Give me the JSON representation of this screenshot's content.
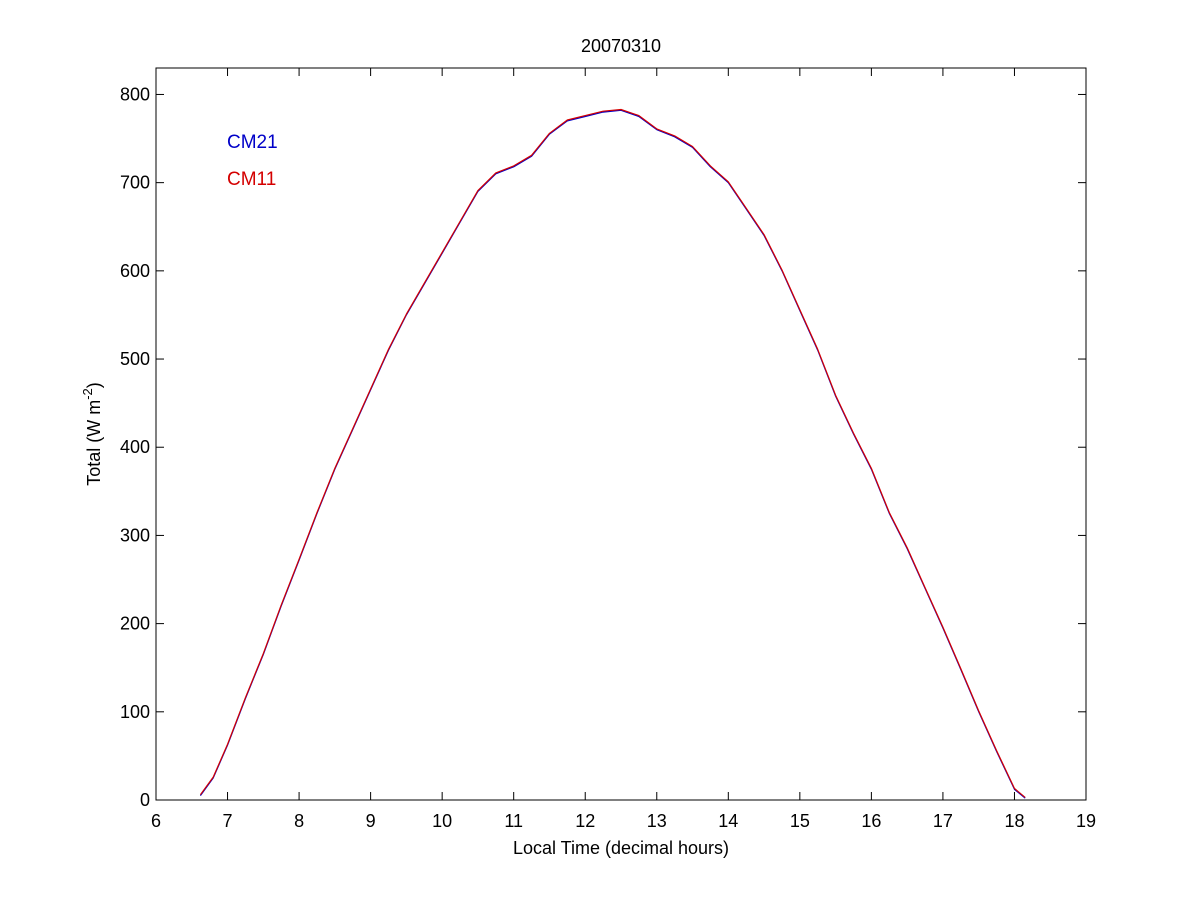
{
  "chart_data": {
    "type": "line",
    "title": "20070310",
    "xlabel": "Local Time (decimal hours)",
    "ylabel_main": "Total (W m",
    "ylabel_sup": "-2",
    "ylabel_tail": ")",
    "xlim": [
      6,
      19
    ],
    "ylim": [
      0,
      830
    ],
    "xticks": [
      6,
      7,
      8,
      9,
      10,
      11,
      12,
      13,
      14,
      15,
      16,
      17,
      18,
      19
    ],
    "yticks": [
      0,
      100,
      200,
      300,
      400,
      500,
      600,
      700,
      800
    ],
    "grid": false,
    "legend_placement": "top-left",
    "series": [
      {
        "name": "CM21",
        "color": "#0000c8",
        "x": [
          6.62,
          6.8,
          7.0,
          7.25,
          7.5,
          7.75,
          8.0,
          8.25,
          8.5,
          8.75,
          9.0,
          9.25,
          9.5,
          9.75,
          10.0,
          10.25,
          10.5,
          10.75,
          11.0,
          11.25,
          11.5,
          11.75,
          12.0,
          12.25,
          12.5,
          12.75,
          13.0,
          13.25,
          13.5,
          13.75,
          14.0,
          14.25,
          14.5,
          14.75,
          15.0,
          15.25,
          15.5,
          15.75,
          16.0,
          16.25,
          16.5,
          16.75,
          17.0,
          17.25,
          17.5,
          17.75,
          18.0,
          18.15
        ],
        "y": [
          5,
          25,
          62,
          115,
          165,
          220,
          272,
          325,
          375,
          420,
          465,
          510,
          550,
          585,
          620,
          655,
          690,
          710,
          718,
          730,
          755,
          770,
          775,
          780,
          782,
          775,
          760,
          752,
          740,
          718,
          700,
          670,
          640,
          600,
          555,
          510,
          458,
          415,
          375,
          325,
          285,
          240,
          195,
          148,
          100,
          55,
          12,
          2
        ]
      },
      {
        "name": "CM11",
        "color": "#d40000",
        "x": [
          6.62,
          6.8,
          7.0,
          7.25,
          7.5,
          7.75,
          8.0,
          8.25,
          8.5,
          8.75,
          9.0,
          9.25,
          9.5,
          9.75,
          10.0,
          10.25,
          10.5,
          10.75,
          11.0,
          11.25,
          11.5,
          11.75,
          12.0,
          12.25,
          12.5,
          12.75,
          13.0,
          13.25,
          13.5,
          13.75,
          14.0,
          14.25,
          14.5,
          14.75,
          15.0,
          15.25,
          15.5,
          15.75,
          16.0,
          16.25,
          16.5,
          16.75,
          17.0,
          17.25,
          17.5,
          17.75,
          18.0,
          18.15
        ],
        "y": [
          6,
          26,
          63,
          116,
          166,
          221,
          273,
          326,
          376,
          421,
          466,
          511,
          551,
          586,
          621,
          656,
          691,
          711,
          719,
          731,
          756,
          771,
          776,
          781,
          783,
          776,
          761,
          753,
          741,
          719,
          701,
          671,
          641,
          601,
          556,
          511,
          459,
          416,
          376,
          326,
          286,
          241,
          196,
          149,
          101,
          56,
          13,
          3
        ]
      }
    ]
  }
}
